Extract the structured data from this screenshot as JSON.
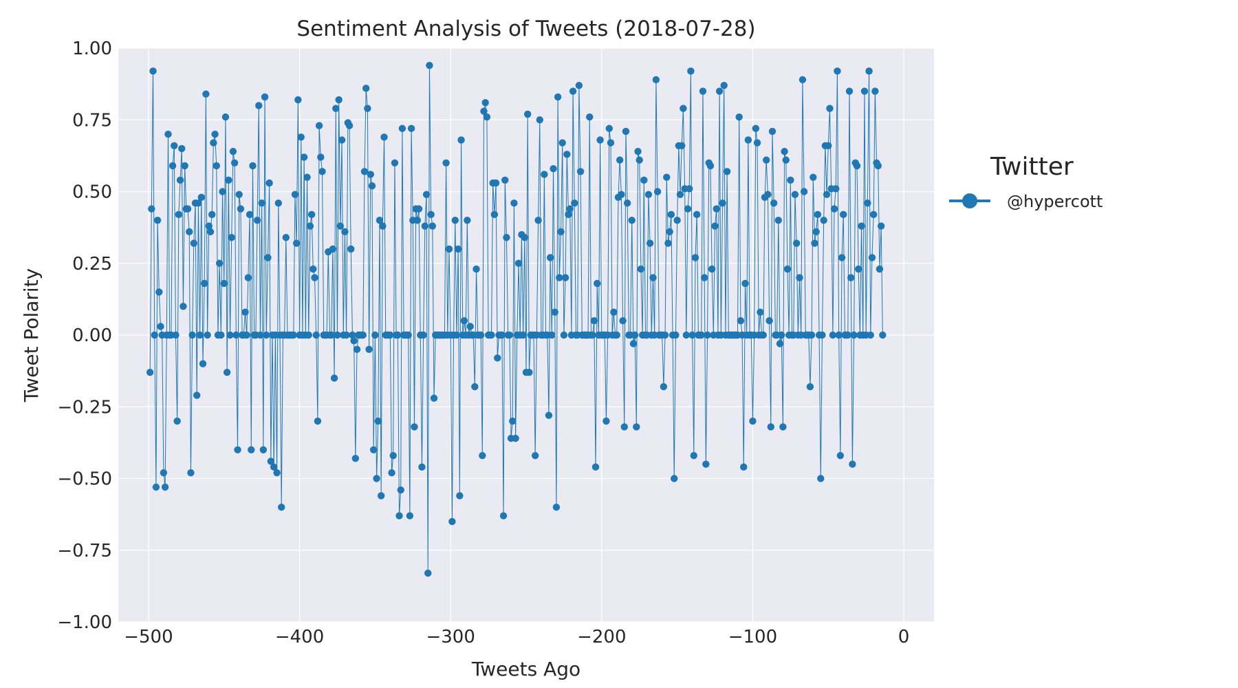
{
  "chart_data": {
    "type": "line",
    "title": "Sentiment Analysis of Tweets (2018-07-28)",
    "xlabel": "Tweets Ago",
    "ylabel": "Tweet Polarity",
    "xlim": [
      -520,
      20
    ],
    "ylim": [
      -1.0,
      1.0
    ],
    "xticks": [
      -500,
      -400,
      -300,
      -200,
      -100,
      0
    ],
    "xtick_labels": [
      "−500",
      "−400",
      "−300",
      "−200",
      "−100",
      "0"
    ],
    "yticks": [
      1.0,
      0.75,
      0.5,
      0.25,
      0.0,
      -0.25,
      -0.5,
      -0.75,
      -1.0
    ],
    "ytick_labels": [
      "1.00",
      "0.75",
      "0.50",
      "0.25",
      "0.00",
      "−0.25",
      "−0.50",
      "−0.75",
      "−1.00"
    ],
    "grid": true,
    "legend": {
      "title": "Twitter",
      "placement": "outside-right"
    },
    "series": [
      {
        "name": "@hypercott",
        "color": "#1f77b4",
        "marker": "circle",
        "x_start": -499,
        "x_step": 1,
        "values": [
          -0.13,
          0.44,
          0.92,
          0,
          -0.53,
          0.4,
          0.15,
          0.03,
          0,
          -0.48,
          -0.53,
          0,
          0.7,
          0,
          0,
          0.59,
          0.66,
          0,
          -0.3,
          0.42,
          0.54,
          0.65,
          0.1,
          0.59,
          0.44,
          0.44,
          0.36,
          -0.48,
          0,
          0.32,
          0.46,
          -0.21,
          0.46,
          0,
          0.48,
          -0.1,
          0.18,
          0.84,
          0,
          0.38,
          0.36,
          0.42,
          0.67,
          0.7,
          0.59,
          0,
          0.25,
          0,
          0.5,
          0.18,
          0.76,
          -0.13,
          0.54,
          0,
          0.34,
          0.64,
          0.6,
          0,
          -0.4,
          0.49,
          0.44,
          0,
          0,
          0.08,
          0,
          0.2,
          0.42,
          -0.4,
          0.59,
          0,
          0,
          0.4,
          0.8,
          0,
          0.46,
          -0.4,
          0.83,
          0,
          0.27,
          0.53,
          -0.44,
          0,
          -0.46,
          0,
          -0.48,
          0.46,
          0,
          -0.6,
          0,
          0,
          0.34,
          0,
          0,
          0,
          0,
          0,
          0.49,
          0.32,
          0.82,
          0,
          0.69,
          0,
          0.62,
          0,
          0.55,
          0,
          0.38,
          0.42,
          0.23,
          0.2,
          0,
          -0.3,
          0.73,
          0.62,
          0.57,
          0,
          0,
          0,
          0.29,
          0,
          0,
          0.3,
          -0.15,
          0.79,
          0,
          0.82,
          0.38,
          0.68,
          0,
          0.36,
          0,
          0.74,
          0.73,
          0.3,
          0,
          -0.02,
          -0.43,
          -0.05,
          0,
          0,
          0,
          0,
          0.57,
          0.86,
          0.79,
          -0.05,
          0.56,
          0.52,
          -0.4,
          0,
          -0.5,
          -0.3,
          0.4,
          -0.56,
          0.38,
          0.69,
          0,
          0,
          0,
          0,
          -0.48,
          -0.42,
          0.6,
          0,
          0,
          -0.63,
          -0.54,
          0.72,
          0,
          0,
          0,
          0,
          -0.63,
          0.72,
          0.4,
          -0.32,
          0.44,
          0.4,
          0.44,
          0,
          -0.46,
          0,
          0.38,
          0.49,
          -0.83,
          0.94,
          0.42,
          0.38,
          -0.22,
          0,
          0,
          0,
          0,
          0,
          0,
          0,
          0.6,
          0,
          0.3,
          0,
          -0.65,
          0,
          0.4,
          0,
          0.3,
          -0.56,
          0.68,
          0,
          0.05,
          0,
          0.4,
          0,
          0.03,
          0,
          0,
          -0.18,
          0.23,
          0,
          0,
          0,
          -0.42,
          0.78,
          0.81,
          0.76,
          0,
          0,
          0,
          0.53,
          0.42,
          0.53,
          -0.08,
          0,
          0,
          0,
          -0.63,
          0.54,
          0.34,
          0,
          0,
          -0.36,
          -0.3,
          0.46,
          -0.36,
          0,
          0.25,
          0,
          0.35,
          0,
          0.34,
          -0.13,
          0.77,
          -0.13,
          0,
          0,
          0,
          -0.42,
          0,
          0.4,
          0.75,
          0,
          0,
          0.56,
          0,
          0,
          -0.28,
          0.27,
          0,
          0.58,
          0.08,
          -0.6,
          0.83,
          0.2,
          0.36,
          0.67,
          0,
          0.2,
          0.63,
          0.42,
          0.44,
          0,
          0.85,
          0.46,
          0,
          0,
          0.87,
          0.57,
          0,
          0,
          0,
          0,
          0,
          0.76,
          0,
          0,
          0.05,
          -0.46,
          0.18,
          0,
          0.68,
          0,
          0,
          0,
          -0.3,
          0,
          0.72,
          0.67,
          0,
          0.08,
          0,
          0,
          0.48,
          0.61,
          0.49,
          0.05,
          -0.32,
          0.71,
          0.46,
          0,
          0,
          0.4,
          -0.03,
          0,
          -0.32,
          0.64,
          0.61,
          0.23,
          0,
          0.54,
          0,
          0,
          0.49,
          0.32,
          0,
          0.2,
          0,
          0.89,
          0.5,
          0,
          0,
          0,
          -0.18,
          0,
          0.55,
          0.32,
          0.36,
          0.42,
          0,
          -0.5,
          0,
          0.4,
          0.66,
          0.49,
          0.66,
          0.79,
          0.51,
          0,
          0.44,
          0.51,
          0.92,
          0,
          -0.42,
          0.27,
          0.42,
          0,
          0,
          0,
          0.85,
          0.2,
          -0.45,
          0,
          0.6,
          0.59,
          0.23,
          0,
          0.38,
          0.44,
          0,
          0.85,
          0,
          0.46,
          0.87,
          0,
          0.57,
          0,
          0,
          0,
          0,
          0,
          0,
          0,
          0.76,
          0.05,
          0,
          -0.46,
          0.18,
          0,
          0.68,
          0,
          0,
          -0.3,
          0,
          0.72,
          0.67,
          0,
          0.08,
          0,
          0,
          0.48,
          0.61,
          0.49,
          0.05,
          -0.32,
          0.71,
          0.46,
          0,
          0,
          0.4,
          -0.03,
          0,
          -0.32,
          0.64,
          0.61,
          0.23,
          0,
          0.54,
          0,
          0,
          0.49,
          0.32,
          0,
          0.2,
          0,
          0.89,
          0.5,
          0,
          0,
          0,
          -0.18,
          0,
          0.55,
          0.32,
          0.36,
          0.42,
          0,
          -0.5,
          0,
          0.4,
          0.66,
          0.49,
          0.66,
          0.79,
          0.51,
          0,
          0.44,
          0.51,
          0.92,
          0,
          -0.42,
          0.27,
          0.42,
          0,
          0,
          0,
          0.85,
          0.2,
          -0.45,
          0,
          0.6,
          0.59,
          0.23,
          0,
          0.38,
          0,
          0.85,
          0,
          0.46,
          0.92,
          0,
          0.27,
          0.42,
          0.85,
          0.6,
          0.59,
          0.23,
          0.38,
          0
        ]
      }
    ]
  }
}
